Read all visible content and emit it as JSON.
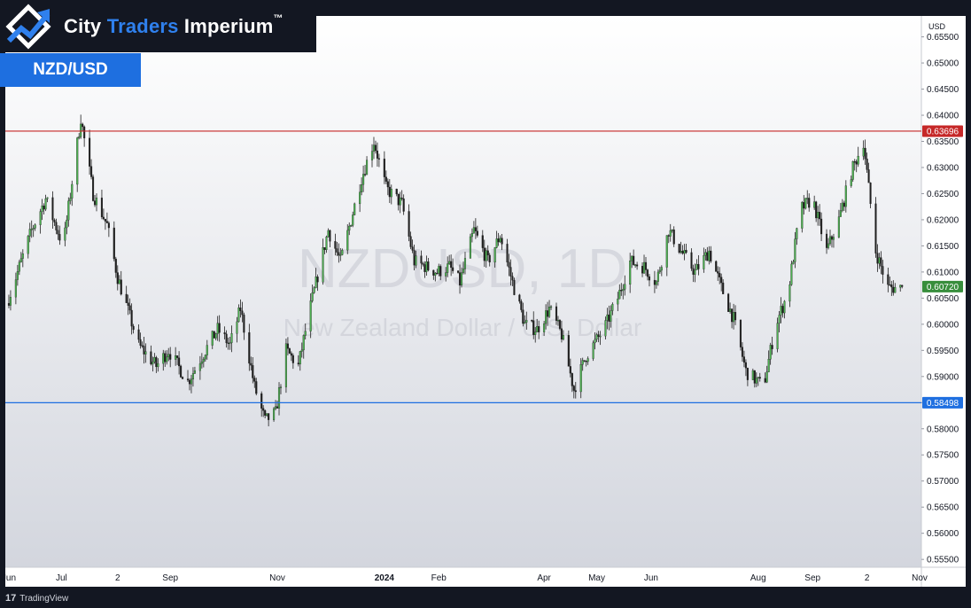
{
  "brand": {
    "name_part1": "City ",
    "name_part2": "Traders",
    "name_part3": " Imperium",
    "trademark": "™",
    "logo_icon": "trend-arrow-icon"
  },
  "pair_badge": "NZD/USD",
  "watermark": {
    "symbol": "NZDUSD, 1D",
    "description": "New Zealand Dollar / U.S. Dollar"
  },
  "footer": {
    "tv_mark": "17",
    "tv_name": "TradingView"
  },
  "colors": {
    "up": "#4caf50",
    "down": "#1f1f1f",
    "resistance": "#c62828",
    "support": "#1e6fe0",
    "badge": "#1e6fe0"
  },
  "chart_data": {
    "type": "candlestick",
    "currency_label": "USD",
    "y_ticks": [
      "0.65500",
      "0.65000",
      "0.64500",
      "0.64000",
      "0.63500",
      "0.63000",
      "0.62500",
      "0.62000",
      "0.61500",
      "0.61000",
      "0.60500",
      "0.60000",
      "0.59500",
      "0.59000",
      "0.58500",
      "0.58000",
      "0.57500",
      "0.57000",
      "0.56500",
      "0.56000",
      "0.55500"
    ],
    "ylim": [
      0.5535,
      0.659
    ],
    "x_ticks": [
      "Jun",
      "Jul",
      "2",
      "Sep",
      "Nov",
      "2024",
      "Feb",
      "Apr",
      "May",
      "Jun",
      "Aug",
      "Sep",
      "2",
      "Nov"
    ],
    "x_ticks_bold": [
      "2024"
    ],
    "resistance": {
      "value": 0.63696,
      "label": "0.63696"
    },
    "support": {
      "value": 0.58498,
      "label": "0.58498"
    },
    "last_price": {
      "value": 0.6072,
      "label": "0.60720"
    },
    "price_path": [
      [
        "2023-06-01",
        0.604
      ],
      [
        "2023-06-15",
        0.618
      ],
      [
        "2023-06-23",
        0.624
      ],
      [
        "2023-07-03",
        0.615
      ],
      [
        "2023-07-13",
        0.6395
      ],
      [
        "2023-07-20",
        0.625
      ],
      [
        "2023-07-28",
        0.619
      ],
      [
        "2023-08-03",
        0.609
      ],
      [
        "2023-08-15",
        0.596
      ],
      [
        "2023-08-25",
        0.592
      ],
      [
        "2023-09-01",
        0.595
      ],
      [
        "2023-09-12",
        0.589
      ],
      [
        "2023-09-22",
        0.595
      ],
      [
        "2023-09-29",
        0.599
      ],
      [
        "2023-10-06",
        0.596
      ],
      [
        "2023-10-12",
        0.603
      ],
      [
        "2023-10-20",
        0.588
      ],
      [
        "2023-10-26",
        0.5815
      ],
      [
        "2023-11-01",
        0.583
      ],
      [
        "2023-11-07",
        0.595
      ],
      [
        "2023-11-14",
        0.592
      ],
      [
        "2023-11-20",
        0.602
      ],
      [
        "2023-12-01",
        0.618
      ],
      [
        "2023-12-08",
        0.612
      ],
      [
        "2023-12-20",
        0.628
      ],
      [
        "2023-12-27",
        0.635
      ],
      [
        "2024-01-03",
        0.626
      ],
      [
        "2024-01-12",
        0.623
      ],
      [
        "2024-01-19",
        0.612
      ],
      [
        "2024-02-01",
        0.61
      ],
      [
        "2024-02-08",
        0.611
      ],
      [
        "2024-02-14",
        0.608
      ],
      [
        "2024-02-22",
        0.618
      ],
      [
        "2024-03-01",
        0.612
      ],
      [
        "2024-03-08",
        0.617
      ],
      [
        "2024-03-15",
        0.608
      ],
      [
        "2024-03-22",
        0.6
      ],
      [
        "2024-03-29",
        0.599
      ],
      [
        "2024-04-05",
        0.603
      ],
      [
        "2024-04-12",
        0.598
      ],
      [
        "2024-04-19",
        0.5875
      ],
      [
        "2024-04-26",
        0.594
      ],
      [
        "2024-05-06",
        0.599
      ],
      [
        "2024-05-14",
        0.605
      ],
      [
        "2024-05-21",
        0.612
      ],
      [
        "2024-05-29",
        0.611
      ],
      [
        "2024-06-05",
        0.608
      ],
      [
        "2024-06-12",
        0.618
      ],
      [
        "2024-06-19",
        0.614
      ],
      [
        "2024-06-27",
        0.61
      ],
      [
        "2024-07-05",
        0.614
      ],
      [
        "2024-07-12",
        0.607
      ],
      [
        "2024-07-19",
        0.601
      ],
      [
        "2024-07-26",
        0.591
      ],
      [
        "2024-08-05",
        0.588
      ],
      [
        "2024-08-12",
        0.6
      ],
      [
        "2024-08-19",
        0.606
      ],
      [
        "2024-08-26",
        0.622
      ],
      [
        "2024-09-02",
        0.624
      ],
      [
        "2024-09-10",
        0.614
      ],
      [
        "2024-09-17",
        0.62
      ],
      [
        "2024-09-24",
        0.629
      ],
      [
        "2024-10-01",
        0.635
      ],
      [
        "2024-10-08",
        0.614
      ],
      [
        "2024-10-15",
        0.607
      ],
      [
        "2024-10-22",
        0.607
      ]
    ]
  }
}
